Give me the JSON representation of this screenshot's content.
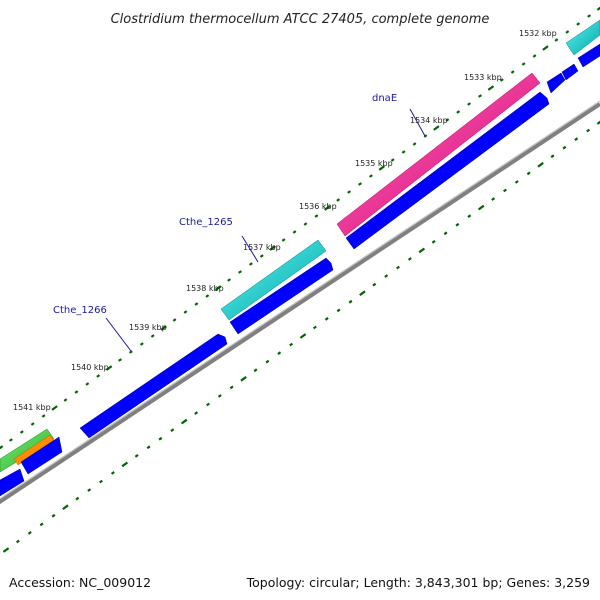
{
  "title": "Clostridium thermocellum ATCC 27405, complete genome",
  "footer": {
    "accession": "Accession: NC_009012",
    "summary": "Topology: circular; Length: 3,843,301 bp; Genes: 3,259"
  },
  "ticks": [
    {
      "label": "1532 kbp"
    },
    {
      "label": "1533 kbp"
    },
    {
      "label": "1534 kbp"
    },
    {
      "label": "1535 kbp"
    },
    {
      "label": "1536 kbp"
    },
    {
      "label": "1537 kbp"
    },
    {
      "label": "1538 kbp"
    },
    {
      "label": "1539 kbp"
    },
    {
      "label": "1540 kbp"
    },
    {
      "label": "1541 kbp"
    }
  ],
  "gene_labels": [
    {
      "name": "dnaE"
    },
    {
      "name": "Cthe_1265"
    },
    {
      "name": "Cthe_1266"
    }
  ],
  "colors": {
    "backbone": "#808080",
    "cds_forward": "#00d2d2",
    "cds_reverse": "#0000ff",
    "dnaE": "#ff1493",
    "green_feature": "#32cd32",
    "orange_feature": "#ff8c00",
    "tick_marks": "#006400",
    "label_line": "#1a1aa0"
  }
}
